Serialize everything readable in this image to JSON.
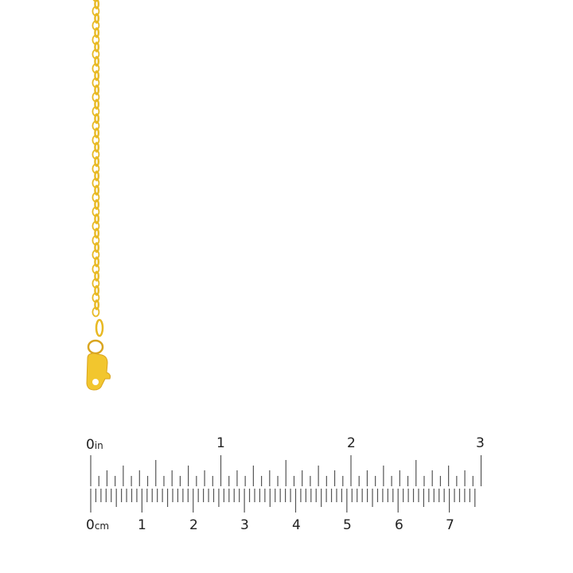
{
  "product": {
    "description_shown": "",
    "metal_color": "#E8B923"
  },
  "ruler": {
    "inch_unit": "in",
    "cm_unit": "cm",
    "inch_labels": [
      "0",
      "1",
      "2",
      "3"
    ],
    "cm_labels": [
      "0",
      "1",
      "2",
      "3",
      "4",
      "5",
      "6",
      "7"
    ],
    "tick_color": "#555555"
  }
}
